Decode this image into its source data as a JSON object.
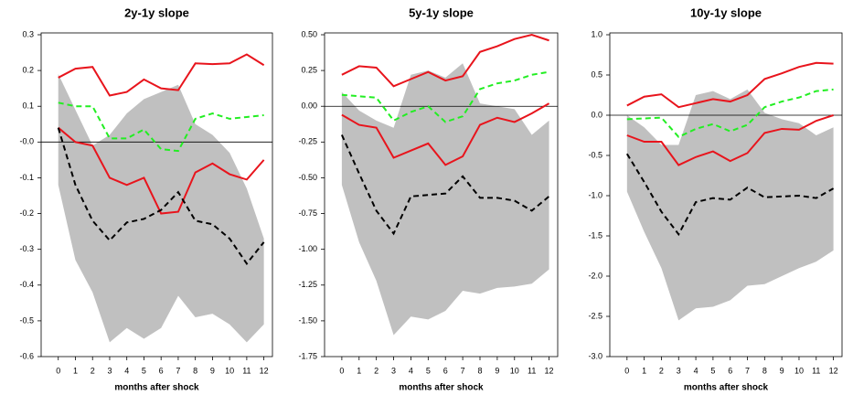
{
  "chart_data": [
    {
      "type": "line",
      "title": "2y-1y slope",
      "xlabel": "months after shock",
      "x": [
        0,
        1,
        2,
        3,
        4,
        5,
        6,
        7,
        8,
        9,
        10,
        11,
        12
      ],
      "xlim": [
        -1,
        12.5
      ],
      "xticks": [
        0,
        1,
        2,
        3,
        4,
        5,
        6,
        7,
        8,
        9,
        10,
        11,
        12
      ],
      "ylim": [
        -0.6,
        0.3
      ],
      "yticks": [
        0.3,
        0.2,
        0.1,
        {
          "value": 0,
          "label": "-0.0"
        },
        -0.1,
        -0.2,
        -0.3,
        -0.4,
        -0.5,
        -0.6
      ],
      "hline": 0,
      "band": {
        "color": "#c0c0c0",
        "upper": [
          0.19,
          0.09,
          -0.01,
          0.02,
          0.08,
          0.12,
          0.14,
          0.16,
          0.05,
          0.02,
          -0.03,
          -0.13,
          -0.27
        ],
        "lower": [
          -0.12,
          -0.33,
          -0.42,
          -0.56,
          -0.52,
          -0.55,
          -0.52,
          -0.43,
          -0.49,
          -0.48,
          -0.51,
          -0.56,
          -0.51
        ]
      },
      "series": [
        {
          "color": "#e8141c",
          "dashed": false,
          "values": [
            0.18,
            0.205,
            0.21,
            0.13,
            0.14,
            0.175,
            0.15,
            0.145,
            0.22,
            0.218,
            0.22,
            0.245,
            0.215
          ]
        },
        {
          "color": "#e8141c",
          "dashed": false,
          "values": [
            0.04,
            0.0,
            -0.01,
            -0.1,
            -0.12,
            -0.1,
            -0.2,
            -0.195,
            -0.085,
            -0.06,
            -0.09,
            -0.105,
            -0.05
          ]
        },
        {
          "color": "#22ee22",
          "dashed": true,
          "values": [
            0.11,
            0.1,
            0.1,
            0.01,
            0.01,
            0.035,
            -0.02,
            -0.025,
            0.065,
            0.08,
            0.065,
            0.07,
            0.075
          ]
        },
        {
          "color": "#000000",
          "dashed": true,
          "values": [
            0.04,
            -0.12,
            -0.22,
            -0.275,
            -0.225,
            -0.215,
            -0.19,
            -0.14,
            -0.22,
            -0.23,
            -0.27,
            -0.34,
            -0.28
          ]
        }
      ]
    },
    {
      "type": "line",
      "title": "5y-1y slope",
      "xlabel": "months after shock",
      "x": [
        0,
        1,
        2,
        3,
        4,
        5,
        6,
        7,
        8,
        9,
        10,
        11,
        12
      ],
      "xlim": [
        -1,
        12.5
      ],
      "xticks": [
        0,
        1,
        2,
        3,
        4,
        5,
        6,
        7,
        8,
        9,
        10,
        11,
        12
      ],
      "ylim": [
        -1.75,
        0.5
      ],
      "yticks": [
        {
          "value": 0.5,
          "label": "0.50"
        },
        0.25,
        {
          "value": 0,
          "label": "0.00"
        },
        -0.25,
        {
          "value": -0.5,
          "label": "-0.50"
        },
        -0.75,
        {
          "value": -1,
          "label": "-1.00"
        },
        -1.25,
        {
          "value": -1.5,
          "label": "-1.50"
        },
        -1.75
      ],
      "hline": 0,
      "band": {
        "color": "#c0c0c0",
        "upper": [
          0.1,
          -0.03,
          -0.1,
          -0.15,
          0.22,
          0.25,
          0.2,
          0.3,
          0.02,
          0.0,
          -0.02,
          -0.2,
          -0.1
        ],
        "lower": [
          -0.55,
          -0.95,
          -1.22,
          -1.6,
          -1.47,
          -1.49,
          -1.43,
          -1.29,
          -1.31,
          -1.27,
          -1.26,
          -1.24,
          -1.14
        ]
      },
      "series": [
        {
          "color": "#e8141c",
          "dashed": false,
          "values": [
            0.22,
            0.28,
            0.27,
            0.14,
            0.19,
            0.24,
            0.18,
            0.21,
            0.38,
            0.42,
            0.47,
            0.5,
            0.46
          ]
        },
        {
          "color": "#e8141c",
          "dashed": false,
          "values": [
            -0.06,
            -0.13,
            -0.15,
            -0.36,
            -0.31,
            -0.26,
            -0.41,
            -0.35,
            -0.13,
            -0.08,
            -0.11,
            -0.05,
            0.02
          ]
        },
        {
          "color": "#22ee22",
          "dashed": true,
          "values": [
            0.08,
            0.07,
            0.06,
            -0.1,
            -0.04,
            0.0,
            -0.11,
            -0.07,
            0.12,
            0.16,
            0.18,
            0.22,
            0.24
          ]
        },
        {
          "color": "#000000",
          "dashed": true,
          "values": [
            -0.2,
            -0.47,
            -0.73,
            -0.89,
            -0.63,
            -0.62,
            -0.61,
            -0.49,
            -0.64,
            -0.64,
            -0.66,
            -0.73,
            -0.63
          ]
        }
      ]
    },
    {
      "type": "line",
      "title": "10y-1y slope",
      "xlabel": "months after shock",
      "x": [
        0,
        1,
        2,
        3,
        4,
        5,
        6,
        7,
        8,
        9,
        10,
        11,
        12
      ],
      "xlim": [
        -1,
        12.5
      ],
      "xticks": [
        0,
        1,
        2,
        3,
        4,
        5,
        6,
        7,
        8,
        9,
        10,
        11,
        12
      ],
      "ylim": [
        -3,
        1
      ],
      "yticks": [
        {
          "value": 1,
          "label": "1.0"
        },
        0.5,
        {
          "value": 0,
          "label": "0.0"
        },
        -0.5,
        {
          "value": -1,
          "label": "-1.0"
        },
        -1.5,
        {
          "value": -2,
          "label": "-2.0"
        },
        -2.5,
        {
          "value": -3,
          "label": "-3.0"
        }
      ],
      "hline": 0,
      "band": {
        "color": "#c0c0c0",
        "upper": [
          0.0,
          -0.15,
          -0.37,
          -0.37,
          0.25,
          0.3,
          0.2,
          0.32,
          0.03,
          -0.05,
          -0.1,
          -0.25,
          -0.15
        ],
        "lower": [
          -0.95,
          -1.45,
          -1.9,
          -2.55,
          -2.4,
          -2.38,
          -2.3,
          -2.12,
          -2.1,
          -2.0,
          -1.9,
          -1.82,
          -1.68
        ]
      },
      "series": [
        {
          "color": "#e8141c",
          "dashed": false,
          "values": [
            0.12,
            0.23,
            0.26,
            0.1,
            0.15,
            0.2,
            0.17,
            0.25,
            0.45,
            0.52,
            0.6,
            0.65,
            0.64
          ]
        },
        {
          "color": "#e8141c",
          "dashed": false,
          "values": [
            -0.25,
            -0.33,
            -0.33,
            -0.62,
            -0.52,
            -0.45,
            -0.57,
            -0.47,
            -0.22,
            -0.17,
            -0.18,
            -0.07,
            0.0
          ]
        },
        {
          "color": "#22ee22",
          "dashed": true,
          "values": [
            -0.05,
            -0.04,
            -0.03,
            -0.27,
            -0.17,
            -0.11,
            -0.2,
            -0.12,
            0.1,
            0.17,
            0.22,
            0.3,
            0.32
          ]
        },
        {
          "color": "#000000",
          "dashed": true,
          "values": [
            -0.48,
            -0.83,
            -1.2,
            -1.48,
            -1.08,
            -1.03,
            -1.05,
            -0.9,
            -1.02,
            -1.01,
            -1.0,
            -1.03,
            -0.91
          ]
        }
      ]
    }
  ]
}
